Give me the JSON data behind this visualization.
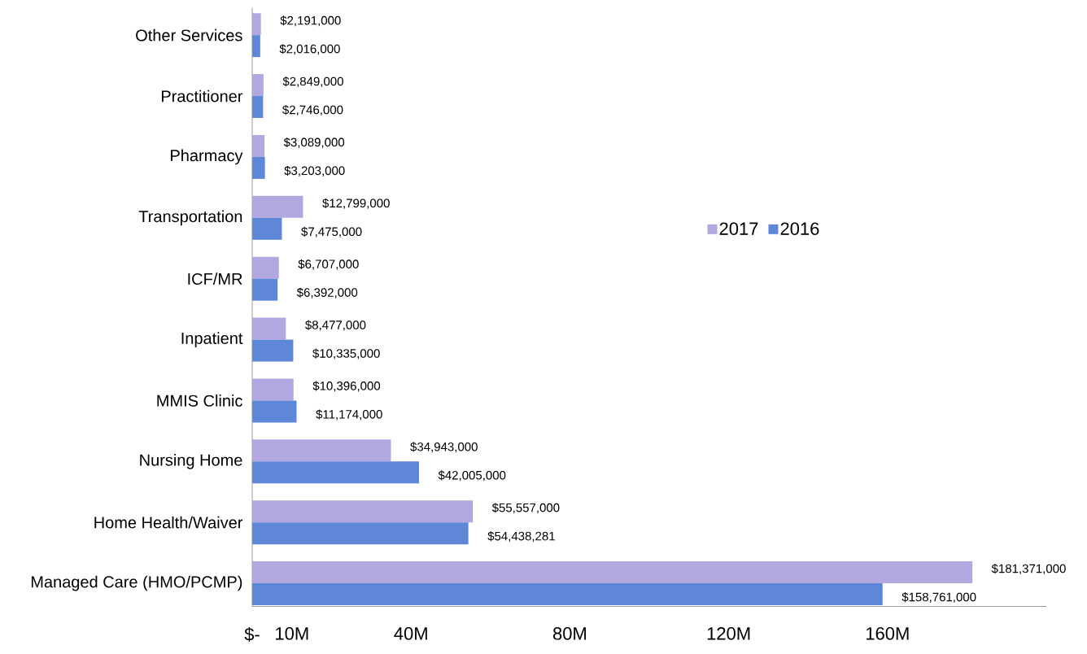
{
  "chart_data": {
    "type": "bar",
    "orientation": "horizontal",
    "categories": [
      "Other Services",
      "Practitioner",
      "Pharmacy",
      "Transportation",
      "ICF/MR",
      "Inpatient",
      "MMIS Clinic",
      "Nursing Home",
      "Home Health/Waiver",
      "Managed Care (HMO/PCMP)"
    ],
    "series": [
      {
        "name": "2017",
        "color": "#b3a7e0",
        "values": [
          2191000,
          2849000,
          3089000,
          12799000,
          6707000,
          8477000,
          10396000,
          34943000,
          55557000,
          181371000
        ],
        "value_labels": [
          "$2,191,000",
          "$2,849,000",
          "$3,089,000",
          "$12,799,000",
          "$6,707,000",
          "$8,477,000",
          "$10,396,000",
          "$34,943,000",
          "$55,557,000",
          "$181,371,000"
        ]
      },
      {
        "name": "2016",
        "color": "#5f87d8",
        "values": [
          2016000,
          2746000,
          3203000,
          7475000,
          6392000,
          10335000,
          11174000,
          42005000,
          54438281,
          158761000
        ],
        "value_labels": [
          "$2,016,000",
          "$2,746,000",
          "$3,203,000",
          "$7,475,000",
          "$6,392,000",
          "$10,335,000",
          "$11,174,000",
          "$42,005,000",
          "$54,438,281",
          "$158,761,000"
        ]
      }
    ],
    "xlim": [
      0,
      200000000
    ],
    "xticks": [
      {
        "value": 0,
        "label": "$-"
      },
      {
        "value": 10000000,
        "label": "10M"
      },
      {
        "value": 40000000,
        "label": "40M"
      },
      {
        "value": 80000000,
        "label": "80M"
      },
      {
        "value": 120000000,
        "label": "120M"
      },
      {
        "value": 160000000,
        "label": "160M"
      }
    ],
    "legend": "right",
    "grid": false
  }
}
